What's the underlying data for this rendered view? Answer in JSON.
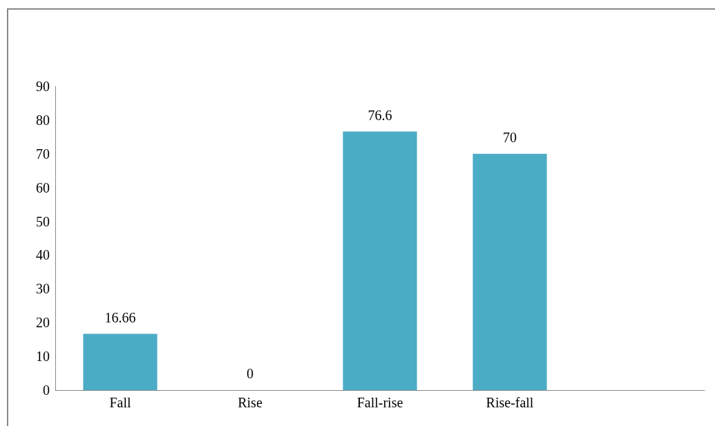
{
  "chart_data": {
    "type": "bar",
    "categories": [
      "Fall",
      "Rise",
      "Fall-rise",
      "Rise-fall",
      null
    ],
    "values": [
      16.66,
      0,
      76.6,
      70,
      null
    ],
    "color": "#4bacc6",
    "ylim": [
      0,
      90
    ],
    "yticks": [
      0,
      10,
      20,
      30,
      40,
      50,
      60,
      70,
      80,
      90
    ],
    "grid": false,
    "data_labels": true
  }
}
